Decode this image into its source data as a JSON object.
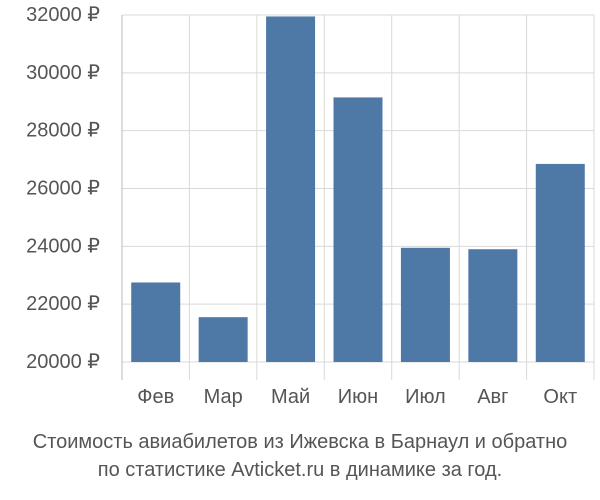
{
  "caption": {
    "line1": "Стоимость авиабилетов из Ижевска в Барнаул и обратно",
    "line2": "по статистике Avticket.ru в динамике за год."
  },
  "colors": {
    "bar": "#4e79a7",
    "grid": "#d9d9d9",
    "text": "#555555"
  },
  "chart_data": {
    "type": "bar",
    "title": "",
    "xlabel": "",
    "ylabel": "",
    "categories": [
      "Фев",
      "Мар",
      "Май",
      "Июн",
      "Июл",
      "Авг",
      "Окт"
    ],
    "values": [
      22750,
      21550,
      31950,
      29150,
      23950,
      23900,
      26850
    ],
    "ylim": [
      20000,
      32000
    ],
    "yticks": [
      20000,
      22000,
      24000,
      26000,
      28000,
      30000,
      32000
    ],
    "ytick_labels": [
      "20000 ₽",
      "22000 ₽",
      "24000 ₽",
      "26000 ₽",
      "28000 ₽",
      "30000 ₽",
      "32000 ₽"
    ],
    "grid": true,
    "legend": "none"
  }
}
